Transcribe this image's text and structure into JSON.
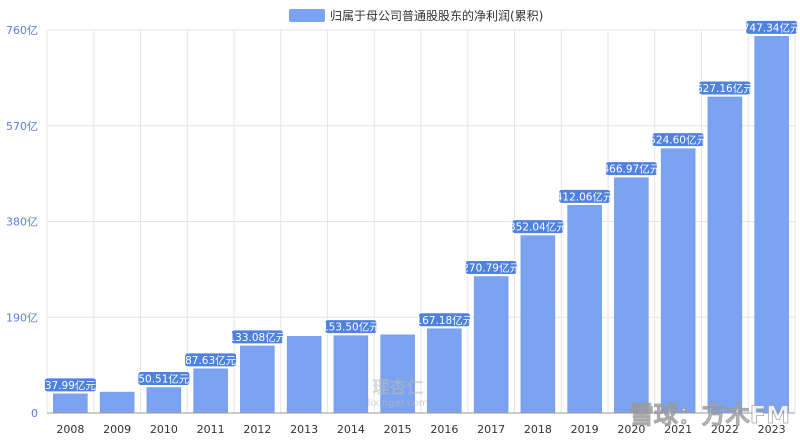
{
  "chart_data": {
    "type": "bar",
    "legend": {
      "label": "归属于母公司普通股股东的净利润(累积)",
      "color": "#7ba3f1",
      "position": "top-center"
    },
    "categories": [
      "2008",
      "2009",
      "2010",
      "2011",
      "2012",
      "2013",
      "2014",
      "2015",
      "2016",
      "2017",
      "2018",
      "2019",
      "2020",
      "2021",
      "2022",
      "2023"
    ],
    "values": [
      37.99,
      41.5,
      50.51,
      87.63,
      133.08,
      152.0,
      153.5,
      155.0,
      167.18,
      270.79,
      352.04,
      412.06,
      466.97,
      524.6,
      627.16,
      747.34
    ],
    "data_labels": [
      "37.99亿元",
      "",
      "50.51亿元",
      "87.63亿元",
      "133.08亿元",
      "",
      "153.50亿元",
      "",
      "167.18亿元",
      "270.79亿元",
      "352.04亿元",
      "412.06亿元",
      "466.97亿元",
      "524.60亿元",
      "627.16亿元",
      "747.34亿元"
    ],
    "y_ticks": [
      "0",
      "190亿",
      "380亿",
      "570亿",
      "760亿"
    ],
    "y_tick_values": [
      0,
      190,
      380,
      570,
      760
    ],
    "ylim": [
      0,
      760
    ],
    "grid": true,
    "colors": {
      "bar": "#7ba3f1",
      "bar_border": "#6a92e6",
      "label_bg": "#4f81e0",
      "label_text": "#ffffff",
      "axis_text": "#333333",
      "y_tick_text": "#5a7fd6",
      "grid": "#e6e6e6"
    }
  },
  "watermarks": {
    "center_line1": "理杏仁",
    "center_line2": "lixinger.com",
    "corner": "雪球：方木FM"
  }
}
